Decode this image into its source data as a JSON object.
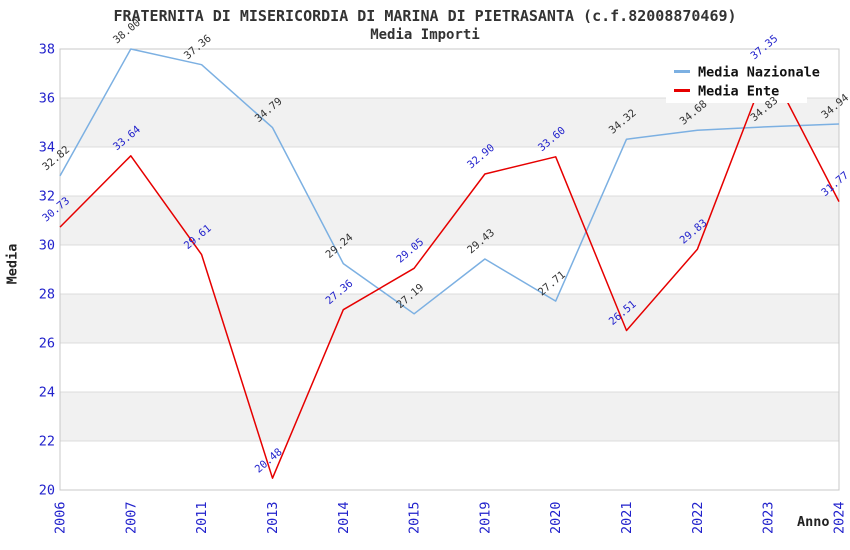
{
  "chart_data": {
    "type": "line",
    "title": "FRATERNITA DI MISERICORDIA DI MARINA DI PIETRASANTA (c.f.82008870469)",
    "subtitle": "Media Importi",
    "xlabel": "Anno",
    "ylabel": "Media",
    "categories": [
      "2006",
      "2007",
      "2011",
      "2013",
      "2014",
      "2015",
      "2019",
      "2020",
      "2021",
      "2022",
      "2023",
      "2024"
    ],
    "series": [
      {
        "name": "Media Nazionale",
        "color": "#7cb0e2",
        "label_color": "#333333",
        "values": [
          32.82,
          38.0,
          37.36,
          34.79,
          29.24,
          27.19,
          29.43,
          27.71,
          34.32,
          34.68,
          34.83,
          34.94
        ]
      },
      {
        "name": "Media Ente",
        "color": "#e60000",
        "label_color": "#2222cc",
        "values": [
          30.73,
          33.64,
          29.61,
          20.48,
          27.36,
          29.05,
          32.9,
          33.6,
          26.51,
          29.83,
          37.35,
          31.77
        ]
      }
    ],
    "ylim": [
      20,
      38
    ],
    "ytick_step": 2,
    "grid": "horizontal-bands-alternating",
    "legend_position": "top-right",
    "colors": {
      "tick_label": "#2222cc",
      "band_fill": "#f1f1f1"
    }
  }
}
